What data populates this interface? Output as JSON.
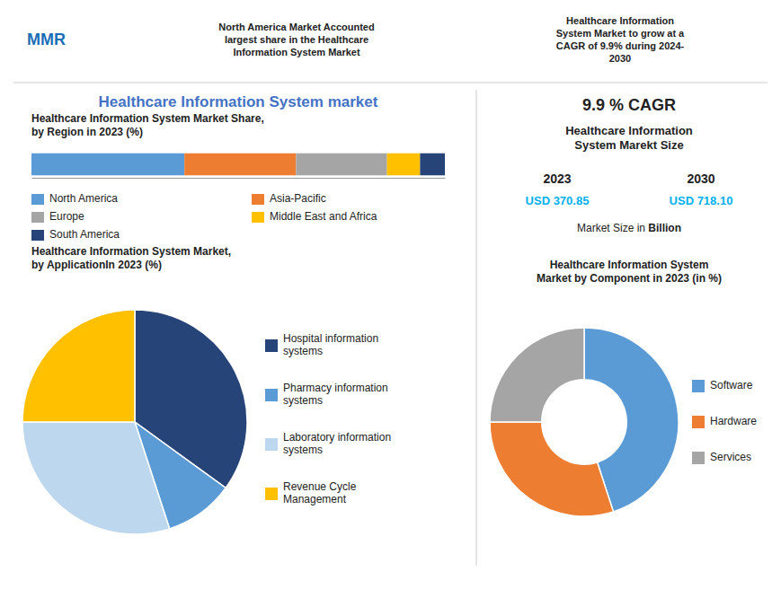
{
  "title": "Healthcare Information System market",
  "color": "#4472c4",
  "annotations": [
    {
      "text": "MMR",
      "color": "#1a6eb5"
    },
    {
      "text": "North America Market Accounted\nlargest share in the Healthcare\nInformation System Market"
    },
    {
      "text": "Healthcare Information\nSystem Market to grow at a\nCAGR of 9.9% during 2024-\n2030"
    },
    {
      "text": "9.9 % CAGR"
    },
    {
      "text": "Healthcare Information\nSystem Marekt Size"
    },
    {
      "text": "2023"
    },
    {
      "text": "2030"
    },
    {
      "text": "USD 370.85",
      "color": "#00b0f0"
    },
    {
      "text": "USD 718.10",
      "color": "#00b0f0"
    },
    {
      "text": "Market Size in "
    },
    {
      "text": "Billion"
    }
  ],
  "chart_data": [
    {
      "type": "bar",
      "orientation": "horizontal",
      "stacked": true,
      "title": "Healthcare Information System Market Share,\nby Region in 2023 (%)",
      "categories": [
        null
      ],
      "series": [
        {
          "name": "North America",
          "color": "#5b9bd5",
          "values": [
            0.37
          ]
        },
        {
          "name": "Asia-Pacific",
          "color": "#ed7d31",
          "values": [
            0.27
          ]
        },
        {
          "name": "Europe",
          "color": "#a5a5a5",
          "values": [
            0.22
          ]
        },
        {
          "name": "Middle East and Africa",
          "color": "#ffc000",
          "values": [
            0.08
          ]
        },
        {
          "name": "South America",
          "color": "#264478",
          "values": [
            0.06
          ]
        }
      ],
      "xlim": [
        0,
        1
      ],
      "tick_labels": false
    },
    {
      "type": "pie",
      "title": "Healthcare Information System Market,\nby ApplicationIn 2023 (%)",
      "categories": [
        "Hospital information\nsystems",
        "Pharmacy information\nsystems",
        "Laboratory information\nsystems",
        "Revenue Cycle\nManagement"
      ],
      "values": [
        35,
        10,
        30,
        25
      ],
      "colors": [
        "#264478",
        "#5b9bd5",
        "#bdd7ee",
        "#ffc000"
      ]
    },
    {
      "type": "donut",
      "title": "Healthcare Information System\nMarket by Component in 2023 (in %)",
      "categories": [
        "Software",
        "Hardware",
        "Services"
      ],
      "values": [
        45,
        30,
        25
      ],
      "colors": [
        "#5b9bd5",
        "#ed7d31",
        "#a5a5a5"
      ]
    }
  ]
}
